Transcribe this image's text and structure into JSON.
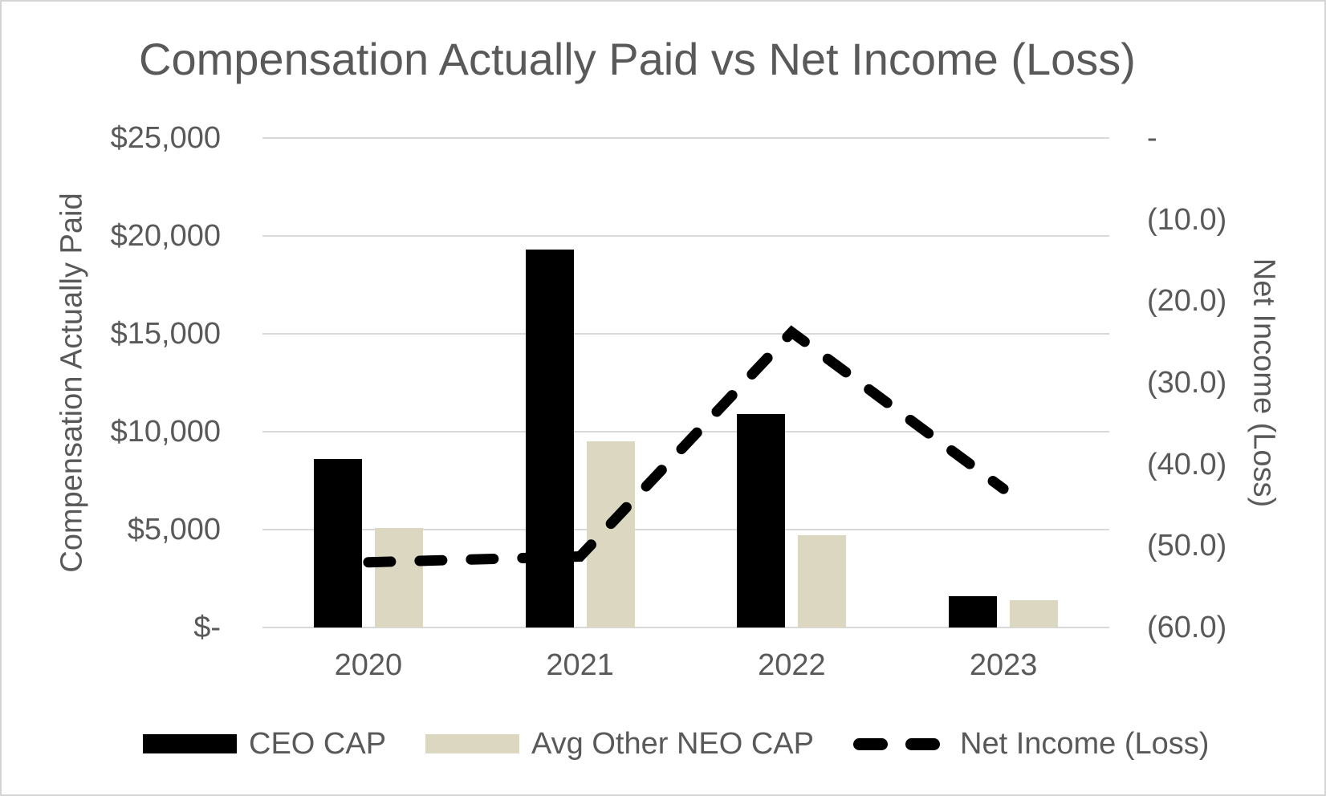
{
  "chart_data": {
    "type": "combo_bar_line",
    "title": "Compensation Actually Paid vs Net Income (Loss)",
    "categories": [
      "2020",
      "2021",
      "2022",
      "2023"
    ],
    "series": [
      {
        "name": "CEO CAP",
        "kind": "bar",
        "axis": "left",
        "color": "#000000",
        "values": [
          8600,
          19300,
          10900,
          1600
        ]
      },
      {
        "name": "Avg Other NEO CAP",
        "kind": "bar",
        "axis": "left",
        "color": "#dcd7c1",
        "values": [
          5100,
          9500,
          4700,
          1400
        ]
      },
      {
        "name": "Net Income (Loss)",
        "kind": "dashed-line",
        "axis": "right",
        "color": "#000000",
        "values": [
          -52.0,
          -51.3,
          -23.8,
          -43.0
        ]
      }
    ],
    "left_axis": {
      "title": "Compensation Actually Paid",
      "min": 0,
      "max": 25000,
      "step": 5000,
      "tick_labels": [
        "$-",
        "$5,000",
        "$10,000",
        "$15,000",
        "$20,000",
        "$25,000"
      ]
    },
    "right_axis": {
      "title": "Net Income (Loss)",
      "min": -60,
      "max": 0,
      "step": 10,
      "tick_labels": [
        "-",
        "(10.0)",
        "(20.0)",
        "(30.0)",
        "(40.0)",
        "(50.0)",
        "(60.0)"
      ]
    },
    "x_axis": {
      "tick_labels": [
        "2020",
        "2021",
        "2022",
        "2023"
      ]
    },
    "legend": {
      "position": "bottom",
      "entries": [
        "CEO CAP",
        "Avg Other NEO CAP",
        "Net Income (Loss)"
      ]
    },
    "grid": true,
    "colors": {
      "text": "#595959",
      "gridline": "#d9d9d9",
      "frame_border": "#d5d5d5",
      "background": "#ffffff"
    }
  }
}
